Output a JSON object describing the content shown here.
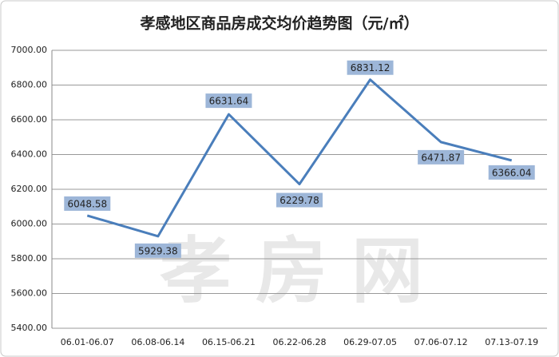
{
  "chart_data": {
    "type": "line",
    "title": "孝感地区商品房成交均价趋势图（元/㎡）",
    "watermark": "孝房网",
    "categories": [
      "06.01-06.07",
      "06.08-06.14",
      "06.15-06.21",
      "06.22-06.28",
      "06.29-07.05",
      "07.06-07.12",
      "07.13-07.19"
    ],
    "series": [
      {
        "color": "#4a7ebb",
        "values": [
          6048.58,
          5929.38,
          6631.64,
          6229.78,
          6831.12,
          6471.87,
          6366.04
        ]
      }
    ],
    "ylim": [
      5400,
      7000
    ],
    "yticks": [
      {
        "value": 5400,
        "label": "5400.00"
      },
      {
        "value": 5600,
        "label": "5600.00"
      },
      {
        "value": 5800,
        "label": "5800.00"
      },
      {
        "value": 6000,
        "label": "6000.00"
      },
      {
        "value": 6200,
        "label": "6200.00"
      },
      {
        "value": 6400,
        "label": "6400.00"
      },
      {
        "value": 6600,
        "label": "6600.00"
      },
      {
        "value": 6800,
        "label": "6800.00"
      },
      {
        "value": 7000,
        "label": "7000.00"
      }
    ],
    "grid": true
  }
}
